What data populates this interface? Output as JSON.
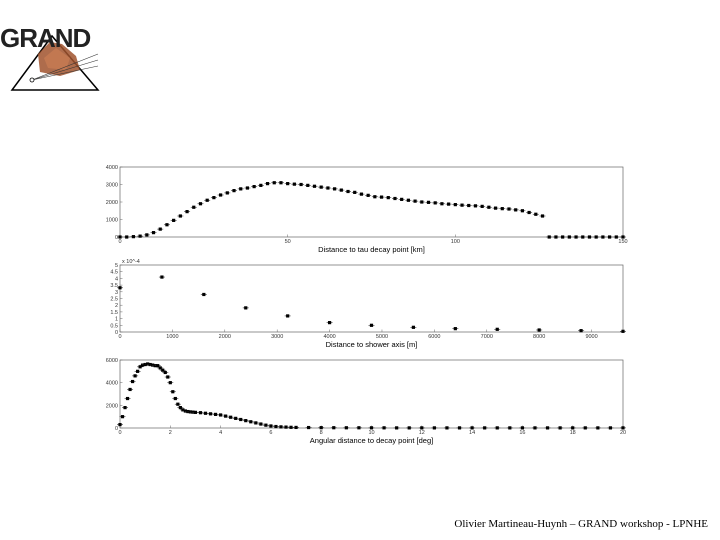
{
  "logo": {
    "text": "GRAND"
  },
  "footer": {
    "text": "Olivier Martineau-Huynh – GRAND workshop - LPNHE"
  },
  "chart_data": [
    {
      "type": "scatter",
      "title": "",
      "xlabel": "Distance to tau decay point [km]",
      "ylabel": "",
      "xlim": [
        0,
        150
      ],
      "ylim": [
        0,
        4000
      ],
      "xticks": [
        0,
        50,
        100,
        150
      ],
      "yticks": [
        0,
        1000,
        2000,
        3000,
        4000
      ],
      "grid": false,
      "x": [
        0,
        2,
        4,
        6,
        8,
        10,
        12,
        14,
        16,
        18,
        20,
        22,
        24,
        26,
        28,
        30,
        32,
        34,
        36,
        38,
        40,
        42,
        44,
        46,
        48,
        50,
        52,
        54,
        56,
        58,
        60,
        62,
        64,
        66,
        68,
        70,
        72,
        74,
        76,
        78,
        80,
        82,
        84,
        86,
        88,
        90,
        92,
        94,
        96,
        98,
        100,
        102,
        104,
        106,
        108,
        110,
        112,
        114,
        116,
        118,
        120,
        122,
        124,
        126,
        128,
        130,
        132,
        134,
        136,
        138,
        140,
        142,
        144,
        146,
        148,
        150
      ],
      "y": [
        0,
        0,
        20,
        50,
        120,
        250,
        450,
        700,
        950,
        1200,
        1450,
        1700,
        1900,
        2100,
        2250,
        2400,
        2520,
        2650,
        2750,
        2800,
        2880,
        2950,
        3050,
        3100,
        3100,
        3050,
        3020,
        3000,
        2950,
        2900,
        2850,
        2800,
        2750,
        2680,
        2600,
        2550,
        2450,
        2380,
        2300,
        2280,
        2250,
        2200,
        2150,
        2100,
        2050,
        2000,
        1980,
        1950,
        1900,
        1880,
        1850,
        1820,
        1800,
        1780,
        1750,
        1700,
        1650,
        1620,
        1600,
        1550,
        1500,
        1400,
        1300,
        1200,
        0,
        0,
        0,
        0,
        0,
        0,
        0,
        0,
        0,
        0,
        0,
        0
      ]
    },
    {
      "type": "scatter",
      "title": "",
      "xlabel": "Distance to shower axis [m]",
      "ylabel": "",
      "multiplier": "x 10^-4",
      "xlim": [
        0,
        9600
      ],
      "ylim": [
        0,
        5
      ],
      "xticks": [
        0,
        1000,
        2000,
        3000,
        4000,
        5000,
        6000,
        7000,
        8000,
        9000
      ],
      "yticks": [
        0,
        0.5,
        1,
        1.5,
        2,
        2.5,
        3,
        3.5,
        4,
        4.5,
        5
      ],
      "grid": false,
      "x": [
        0,
        800,
        1600,
        2400,
        3200,
        4000,
        4800,
        5600,
        6400,
        7200,
        8000,
        8800,
        9600
      ],
      "y": [
        3.3,
        4.1,
        2.8,
        1.8,
        1.2,
        0.7,
        0.5,
        0.35,
        0.25,
        0.2,
        0.15,
        0.1,
        0.05
      ]
    },
    {
      "type": "scatter",
      "title": "",
      "xlabel": "Angular distance to decay point [deg]",
      "ylabel": "",
      "xlim": [
        0,
        20
      ],
      "ylim": [
        0,
        6000
      ],
      "xticks": [
        0,
        2,
        4,
        6,
        8,
        10,
        12,
        14,
        16,
        18,
        20
      ],
      "yticks": [
        0,
        2000,
        4000,
        6000
      ],
      "grid": false,
      "x": [
        0,
        0.1,
        0.2,
        0.3,
        0.4,
        0.5,
        0.6,
        0.7,
        0.8,
        0.9,
        1.0,
        1.1,
        1.2,
        1.3,
        1.4,
        1.5,
        1.6,
        1.7,
        1.8,
        1.9,
        2.0,
        2.1,
        2.2,
        2.3,
        2.4,
        2.5,
        2.6,
        2.7,
        2.8,
        2.9,
        3.0,
        3.2,
        3.4,
        3.6,
        3.8,
        4.0,
        4.2,
        4.4,
        4.6,
        4.8,
        5.0,
        5.2,
        5.4,
        5.6,
        5.8,
        6.0,
        6.2,
        6.4,
        6.6,
        6.8,
        7.0,
        7.5,
        8,
        8.5,
        9,
        9.5,
        10,
        10.5,
        11,
        11.5,
        12,
        12.5,
        13,
        13.5,
        14,
        14.5,
        15,
        15.5,
        16,
        16.5,
        17,
        17.5,
        18,
        18.5,
        19,
        19.5,
        20
      ],
      "y": [
        300,
        1000,
        1800,
        2600,
        3400,
        4100,
        4600,
        5000,
        5400,
        5550,
        5600,
        5650,
        5600,
        5550,
        5500,
        5500,
        5300,
        5100,
        4900,
        4500,
        4000,
        3200,
        2600,
        2100,
        1800,
        1600,
        1500,
        1450,
        1420,
        1400,
        1380,
        1350,
        1300,
        1250,
        1200,
        1150,
        1050,
        950,
        850,
        750,
        650,
        550,
        450,
        350,
        250,
        180,
        130,
        100,
        80,
        60,
        50,
        40,
        30,
        25,
        20,
        20,
        15,
        15,
        10,
        10,
        10,
        10,
        10,
        10,
        10,
        10,
        10,
        10,
        10,
        10,
        10,
        10,
        10,
        10,
        10,
        10,
        10
      ]
    }
  ]
}
